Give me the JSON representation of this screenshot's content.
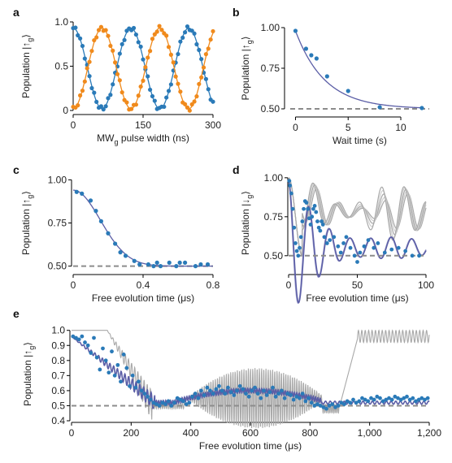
{
  "colors": {
    "blue": "#2a7ab8",
    "orange": "#f08a1c",
    "fit": "#5b5ea6",
    "dash": "#8c8c8c",
    "gray": "#a8a8a8",
    "gray_light": "#cfcfcf",
    "axis": "#000000"
  },
  "chart_data": [
    {
      "panel": "a",
      "type": "scatter",
      "xlabel_main": "MW",
      "xlabel_sub": "g",
      "xlabel_rest": " pulse width (ns)",
      "ylabel_main": "Population |↑",
      "ylabel_sub": "g",
      "ylabel_rest": "⟩",
      "xlim": [
        0,
        300
      ],
      "ylim": [
        0,
        1
      ],
      "xticks": [
        0,
        150,
        300
      ],
      "xtick_labels": [
        "0",
        "150",
        "300"
      ],
      "yticks": [
        0,
        0.5,
        1
      ],
      "ytick_labels": [
        "0",
        "0.5",
        "1.0"
      ],
      "series": [
        {
          "model": "rabi",
          "amp_max": 0.93,
          "amp_min": 0.02,
          "period": 124,
          "phase_start": "high",
          "color_key": "blue",
          "x_step": 5,
          "x_max": 300
        },
        {
          "model": "rabi",
          "amp_max": 0.93,
          "amp_min": 0.02,
          "period": 124,
          "phase_start": "low",
          "color_key": "orange",
          "x_step": 5,
          "x_max": 300
        }
      ]
    },
    {
      "panel": "b",
      "type": "scatter",
      "xlabel": "Wait time (s)",
      "ylabel_main": "Population |↑",
      "ylabel_sub": "g",
      "ylabel_rest": "⟩",
      "xlim": [
        -0.5,
        12.7
      ],
      "ylim": [
        0.47,
        1.03
      ],
      "xticks": [
        0,
        5,
        10
      ],
      "xtick_labels": [
        "0",
        "5",
        "10"
      ],
      "yticks": [
        0.5,
        0.75,
        1.0
      ],
      "ytick_labels": [
        "0.50",
        "0.75",
        "1.00"
      ],
      "points": {
        "x": [
          0,
          1,
          1.5,
          2,
          3,
          5,
          8,
          12
        ],
        "y": [
          0.98,
          0.87,
          0.83,
          0.81,
          0.7,
          0.61,
          0.51,
          0.505
        ]
      },
      "fit": {
        "model": "exp",
        "offset": 0.5,
        "amp": 0.48,
        "tau": 2.8,
        "x0": 0,
        "x1": 12.2
      },
      "baseline": 0.5
    },
    {
      "panel": "c",
      "type": "scatter",
      "xlabel": "Free evolution time (μs)",
      "ylabel_main": "Population |↑",
      "ylabel_sub": "g",
      "ylabel_rest": "⟩",
      "xlim": [
        0,
        0.8
      ],
      "ylim": [
        0.47,
        1.03
      ],
      "xticks": [
        0,
        0.4,
        0.8
      ],
      "xtick_labels": [
        "0",
        "0.4",
        "0.8"
      ],
      "yticks": [
        0.5,
        0.75,
        1.0
      ],
      "ytick_labels": [
        "0.50",
        "0.75",
        "1.00"
      ],
      "points": {
        "x": [
          0.02,
          0.05,
          0.1,
          0.13,
          0.16,
          0.2,
          0.24,
          0.27,
          0.3,
          0.35,
          0.38,
          0.43,
          0.46,
          0.48,
          0.5,
          0.55,
          0.59,
          0.61,
          0.64,
          0.7,
          0.73,
          0.77
        ],
        "y": [
          0.93,
          0.92,
          0.88,
          0.82,
          0.76,
          0.69,
          0.63,
          0.58,
          0.56,
          0.53,
          0.51,
          0.51,
          0.5,
          0.52,
          0.5,
          0.52,
          0.5,
          0.52,
          0.52,
          0.5,
          0.51,
          0.51
        ]
      },
      "fit": {
        "model": "gauss",
        "offset": 0.5,
        "amp": 0.44,
        "tau": 0.22,
        "x0": 0,
        "x1": 0.8
      },
      "baseline": 0.5
    },
    {
      "panel": "d",
      "type": "line",
      "xlabel": "Free evolution time (μs)",
      "ylabel_main": "Population |↓",
      "ylabel_sub": "g",
      "ylabel_rest": "⟩",
      "xlim": [
        0,
        100
      ],
      "ylim": [
        0.4,
        1.02
      ],
      "xticks": [
        0,
        50,
        100
      ],
      "xtick_labels": [
        "0",
        "50",
        "100"
      ],
      "yticks": [
        0.5,
        0.75,
        1.0
      ],
      "ytick_labels": [
        "0.50",
        "0.75",
        "1.00"
      ],
      "points": {
        "x": [
          0.5,
          1,
          2,
          3,
          4,
          5,
          6,
          7,
          8,
          9,
          10,
          11,
          12,
          13,
          14,
          15,
          16,
          17,
          18,
          19,
          20,
          21,
          22,
          23,
          24,
          25,
          26,
          28,
          30,
          33,
          36,
          38,
          40,
          42,
          45,
          48,
          50,
          52,
          55,
          58,
          62,
          65,
          70,
          75,
          80,
          85,
          90,
          95
        ],
        "y": [
          0.98,
          0.95,
          0.9,
          0.8,
          0.68,
          0.58,
          0.53,
          0.5,
          0.55,
          0.62,
          0.72,
          0.8,
          0.85,
          0.84,
          0.8,
          0.74,
          0.7,
          0.75,
          0.8,
          0.82,
          0.78,
          0.72,
          0.68,
          0.66,
          0.72,
          0.7,
          0.62,
          0.58,
          0.6,
          0.62,
          0.56,
          0.52,
          0.58,
          0.62,
          0.55,
          0.5,
          0.46,
          0.52,
          0.56,
          0.6,
          0.55,
          0.58,
          0.52,
          0.54,
          0.55,
          0.53,
          0.5,
          0.5
        ]
      },
      "fit": {
        "model": "beat",
        "offset": 0.55,
        "x0": 0,
        "x1": 100
      },
      "sim": {
        "model": "beat_gray",
        "x0": 0,
        "x1": 100,
        "copies": 5
      },
      "baseline": 0.5
    },
    {
      "panel": "e",
      "type": "line",
      "xlabel": "Free evolution time (μs)",
      "ylabel_main": "Population |↑",
      "ylabel_sub": "g",
      "ylabel_rest": "⟩",
      "xlim": [
        0,
        1200
      ],
      "ylim": [
        0.4,
        1.02
      ],
      "xticks": [
        0,
        200,
        400,
        600,
        800,
        1000,
        1200
      ],
      "xtick_labels": [
        "0",
        "200",
        "400",
        "600",
        "800",
        "1,000",
        "1,200"
      ],
      "yticks": [
        0.4,
        0.5,
        0.6,
        0.7,
        0.8,
        0.9,
        1.0
      ],
      "ytick_labels": [
        "0.4",
        "0.5",
        "0.6",
        "0.7",
        "0.8",
        "0.9",
        "1.0"
      ],
      "scatter_model": "noisy_revival",
      "scatter_x": [
        5,
        15,
        25,
        35,
        45,
        55,
        65,
        75,
        85,
        95,
        105,
        115,
        125,
        135,
        145,
        155,
        165,
        175,
        185,
        195,
        205,
        215,
        225,
        235,
        245,
        255,
        265,
        275,
        285,
        295,
        305,
        315,
        325,
        335,
        345,
        355,
        365,
        375,
        385,
        395,
        405,
        415,
        425,
        435,
        445,
        455,
        465,
        475,
        485,
        495,
        505,
        515,
        525,
        535,
        545,
        555,
        565,
        575,
        585,
        595,
        605,
        615,
        625,
        635,
        645,
        655,
        665,
        675,
        685,
        695,
        705,
        715,
        725,
        735,
        745,
        755,
        765,
        775,
        785,
        795,
        805,
        815,
        825,
        835,
        845,
        855,
        865,
        875,
        885,
        895,
        905,
        915,
        925,
        935,
        945,
        955,
        965,
        975,
        985,
        995,
        1005,
        1015,
        1025,
        1035,
        1045,
        1055,
        1065,
        1075,
        1085,
        1095,
        1105,
        1115,
        1125,
        1135,
        1145,
        1155,
        1165,
        1175,
        1185,
        1195
      ],
      "scatter_y": [
        0.96,
        0.95,
        0.94,
        0.96,
        0.92,
        0.9,
        0.85,
        0.95,
        0.82,
        0.74,
        0.88,
        0.8,
        0.72,
        0.86,
        0.7,
        0.77,
        0.66,
        0.84,
        0.75,
        0.63,
        0.7,
        0.62,
        0.66,
        0.6,
        0.58,
        0.56,
        0.54,
        0.52,
        0.51,
        0.5,
        0.52,
        0.51,
        0.53,
        0.5,
        0.52,
        0.55,
        0.54,
        0.53,
        0.51,
        0.52,
        0.56,
        0.58,
        0.55,
        0.6,
        0.57,
        0.62,
        0.6,
        0.58,
        0.61,
        0.63,
        0.6,
        0.58,
        0.62,
        0.59,
        0.57,
        0.6,
        0.63,
        0.61,
        0.58,
        0.56,
        0.6,
        0.62,
        0.58,
        0.55,
        0.6,
        0.57,
        0.59,
        0.62,
        0.56,
        0.58,
        0.6,
        0.55,
        0.58,
        0.57,
        0.54,
        0.56,
        0.55,
        0.58,
        0.53,
        0.55,
        0.52,
        0.5,
        0.51,
        0.5,
        0.49,
        0.48,
        0.5,
        0.51,
        0.49,
        0.5,
        0.52,
        0.51,
        0.53,
        0.52,
        0.54,
        0.52,
        0.53,
        0.55,
        0.54,
        0.53,
        0.55,
        0.54,
        0.56,
        0.55,
        0.53,
        0.54,
        0.55,
        0.54,
        0.56,
        0.55,
        0.54,
        0.55,
        0.56,
        0.54,
        0.55,
        0.53,
        0.54,
        0.55,
        0.54,
        0.55
      ],
      "fit": {
        "model": "envelope_fit",
        "x0": 0,
        "x1": 1200
      },
      "sim": {
        "model": "revival_gray",
        "x0": 0,
        "x1": 1200
      },
      "baseline": 0.5
    }
  ],
  "panel_letters": {
    "a": "a",
    "b": "b",
    "c": "c",
    "d": "d",
    "e": "e"
  }
}
